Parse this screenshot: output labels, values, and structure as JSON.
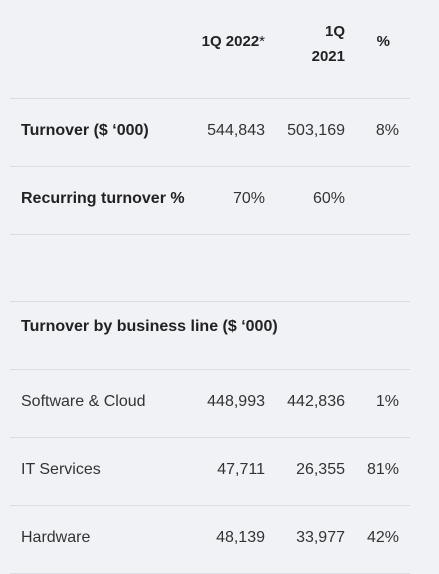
{
  "header": {
    "col1": "1Q 2022",
    "col1_mark": "*",
    "col2_line1": "1Q",
    "col2_line2": "2021",
    "col3": "%"
  },
  "rows": [
    {
      "label": "Turnover ($ ‘000)",
      "v1": "544,843",
      "v2": "503,169",
      "v3": "8%"
    },
    {
      "label": "Recurring turnover %",
      "v1": "70%",
      "v2": "60%",
      "v3": ""
    },
    {
      "label": "",
      "v1": "",
      "v2": "",
      "v3": ""
    },
    {
      "label": "Turnover by business line ($ ‘000)",
      "v1": "",
      "v2": "",
      "v3": ""
    },
    {
      "label": "Software & Cloud",
      "v1": "448,993",
      "v2": "442,836",
      "v3": "1%"
    },
    {
      "label": "IT Services",
      "v1": "47,711",
      "v2": "26,355",
      "v3": "81%"
    },
    {
      "label": "Hardware",
      "v1": "48,139",
      "v2": "33,977",
      "v3": "42%"
    }
  ]
}
